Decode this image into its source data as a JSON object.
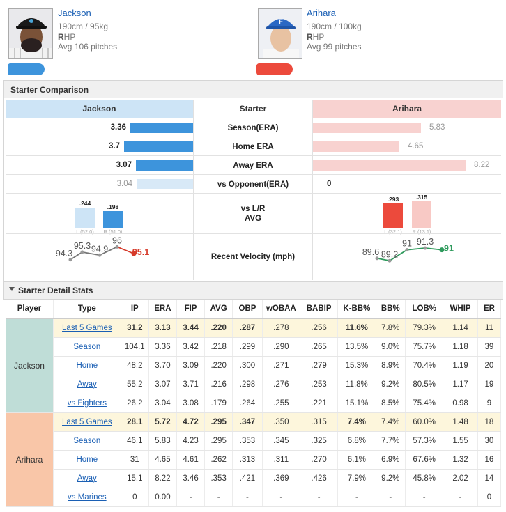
{
  "players": [
    {
      "name": "Jackson",
      "height_weight": "190cm / 95kg",
      "hand_bold": "R",
      "hand_rest": "HP",
      "avg_pitches": "Avg 106 pitches",
      "color": "#3d94dc"
    },
    {
      "name": "Arihara",
      "height_weight": "190cm / 100kg",
      "hand_bold": "R",
      "hand_rest": "HP",
      "avg_pitches": "Avg 99 pitches",
      "color": "#ec4a3c"
    }
  ],
  "comparison": {
    "title": "Starter Comparison",
    "left_header": "Jackson",
    "mid_header": "Starter",
    "right_header": "Arihara",
    "rows": [
      {
        "label": "Season(ERA)",
        "left": "3.36",
        "right": "5.83",
        "left_val": 3.36,
        "right_val": 5.83
      },
      {
        "label": "Home ERA",
        "left": "3.7",
        "right": "4.65",
        "left_val": 3.7,
        "right_val": 4.65
      },
      {
        "label": "Away ERA",
        "left": "3.07",
        "right": "8.22",
        "left_val": 3.07,
        "right_val": 8.22
      },
      {
        "label": "vs Opponent(ERA)",
        "left": "3.04",
        "right": "0",
        "left_val": 3.04,
        "right_val": 0
      }
    ],
    "lr_label_1": "vs L/R",
    "lr_label_2": "AVG",
    "lr_left": {
      "l_val": ".244",
      "l_lbl": "L (52.0)",
      "r_val": ".198",
      "r_lbl": "R (51.0)",
      "l_num": 0.244,
      "r_num": 0.198
    },
    "lr_right": {
      "l_val": ".293",
      "l_lbl": "L (32.1)",
      "r_val": ".315",
      "r_lbl": "R (13.1)",
      "l_num": 0.293,
      "r_num": 0.315
    },
    "velocity_label": "Recent Velocity (mph)",
    "velocity_left": [
      "94.3",
      "95.3",
      "94.9",
      "96",
      "95.1"
    ],
    "velocity_right": [
      "89.6",
      "89.2",
      "91",
      "91.3",
      "91"
    ]
  },
  "detail": {
    "title": "Starter Detail Stats",
    "columns": [
      "Player",
      "Type",
      "IP",
      "ERA",
      "FIP",
      "AVG",
      "OBP",
      "wOBAA",
      "BABIP",
      "K-BB%",
      "BB%",
      "LOB%",
      "WHIP",
      "ER"
    ],
    "groups": [
      {
        "player": "Jackson",
        "bg": "#bfddd7",
        "rows": [
          [
            "Last 5 Games",
            "31.2",
            "3.13",
            "3.44",
            ".220",
            ".287",
            ".278",
            ".256",
            "11.6%",
            "7.8%",
            "79.3%",
            "1.14",
            "11"
          ],
          [
            "Season",
            "104.1",
            "3.36",
            "3.42",
            ".218",
            ".299",
            ".290",
            ".265",
            "13.5%",
            "9.0%",
            "75.7%",
            "1.18",
            "39"
          ],
          [
            "Home",
            "48.2",
            "3.70",
            "3.09",
            ".220",
            ".300",
            ".271",
            ".279",
            "15.3%",
            "8.9%",
            "70.4%",
            "1.19",
            "20"
          ],
          [
            "Away",
            "55.2",
            "3.07",
            "3.71",
            ".216",
            ".298",
            ".276",
            ".253",
            "11.8%",
            "9.2%",
            "80.5%",
            "1.17",
            "19"
          ],
          [
            "vs Fighters",
            "26.2",
            "3.04",
            "3.08",
            ".179",
            ".264",
            ".255",
            ".221",
            "15.1%",
            "8.5%",
            "75.4%",
            "0.98",
            "9"
          ]
        ]
      },
      {
        "player": "Arihara",
        "bg": "#f9c6a8",
        "rows": [
          [
            "Last 5 Games",
            "28.1",
            "5.72",
            "4.72",
            ".295",
            ".347",
            ".350",
            ".315",
            "7.4%",
            "7.4%",
            "60.0%",
            "1.48",
            "18"
          ],
          [
            "Season",
            "46.1",
            "5.83",
            "4.23",
            ".295",
            ".353",
            ".345",
            ".325",
            "6.8%",
            "7.7%",
            "57.3%",
            "1.55",
            "30"
          ],
          [
            "Home",
            "31",
            "4.65",
            "4.61",
            ".262",
            ".313",
            ".311",
            ".270",
            "6.1%",
            "6.9%",
            "67.6%",
            "1.32",
            "16"
          ],
          [
            "Away",
            "15.1",
            "8.22",
            "3.46",
            ".353",
            ".421",
            ".369",
            ".426",
            "7.9%",
            "9.2%",
            "45.8%",
            "2.02",
            "14"
          ],
          [
            "vs Marines",
            "0",
            "0.00",
            "-",
            "-",
            "-",
            "-",
            "-",
            "-",
            "-",
            "-",
            "-",
            "0"
          ]
        ]
      }
    ]
  }
}
